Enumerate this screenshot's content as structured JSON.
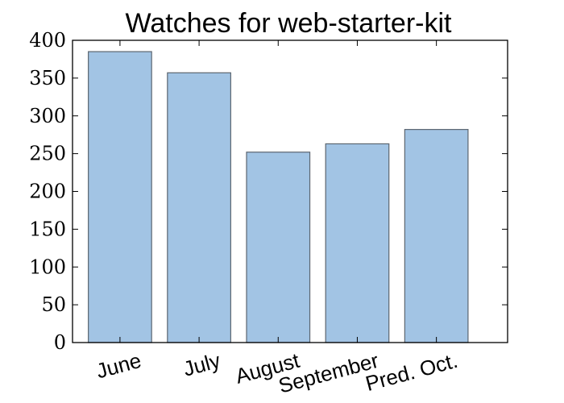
{
  "chart_data": {
    "type": "bar",
    "title": "Watches for web-starter-kit",
    "xlabel": "",
    "ylabel": "",
    "categories": [
      "June",
      "July",
      "August",
      "September",
      "Pred. Oct."
    ],
    "values": [
      385,
      357,
      252,
      263,
      282
    ],
    "ylim": [
      0,
      400
    ],
    "yticks": [
      0,
      50,
      100,
      150,
      200,
      250,
      300,
      350,
      400
    ],
    "ytick_labels": [
      "0",
      "50",
      "100",
      "150",
      "200",
      "250",
      "300",
      "350",
      "400"
    ],
    "grid": false,
    "legend": "none",
    "colors": {
      "bar_fill": "#a2c4e4",
      "bar_edge": "#5c6670",
      "axes": "#000000"
    }
  }
}
